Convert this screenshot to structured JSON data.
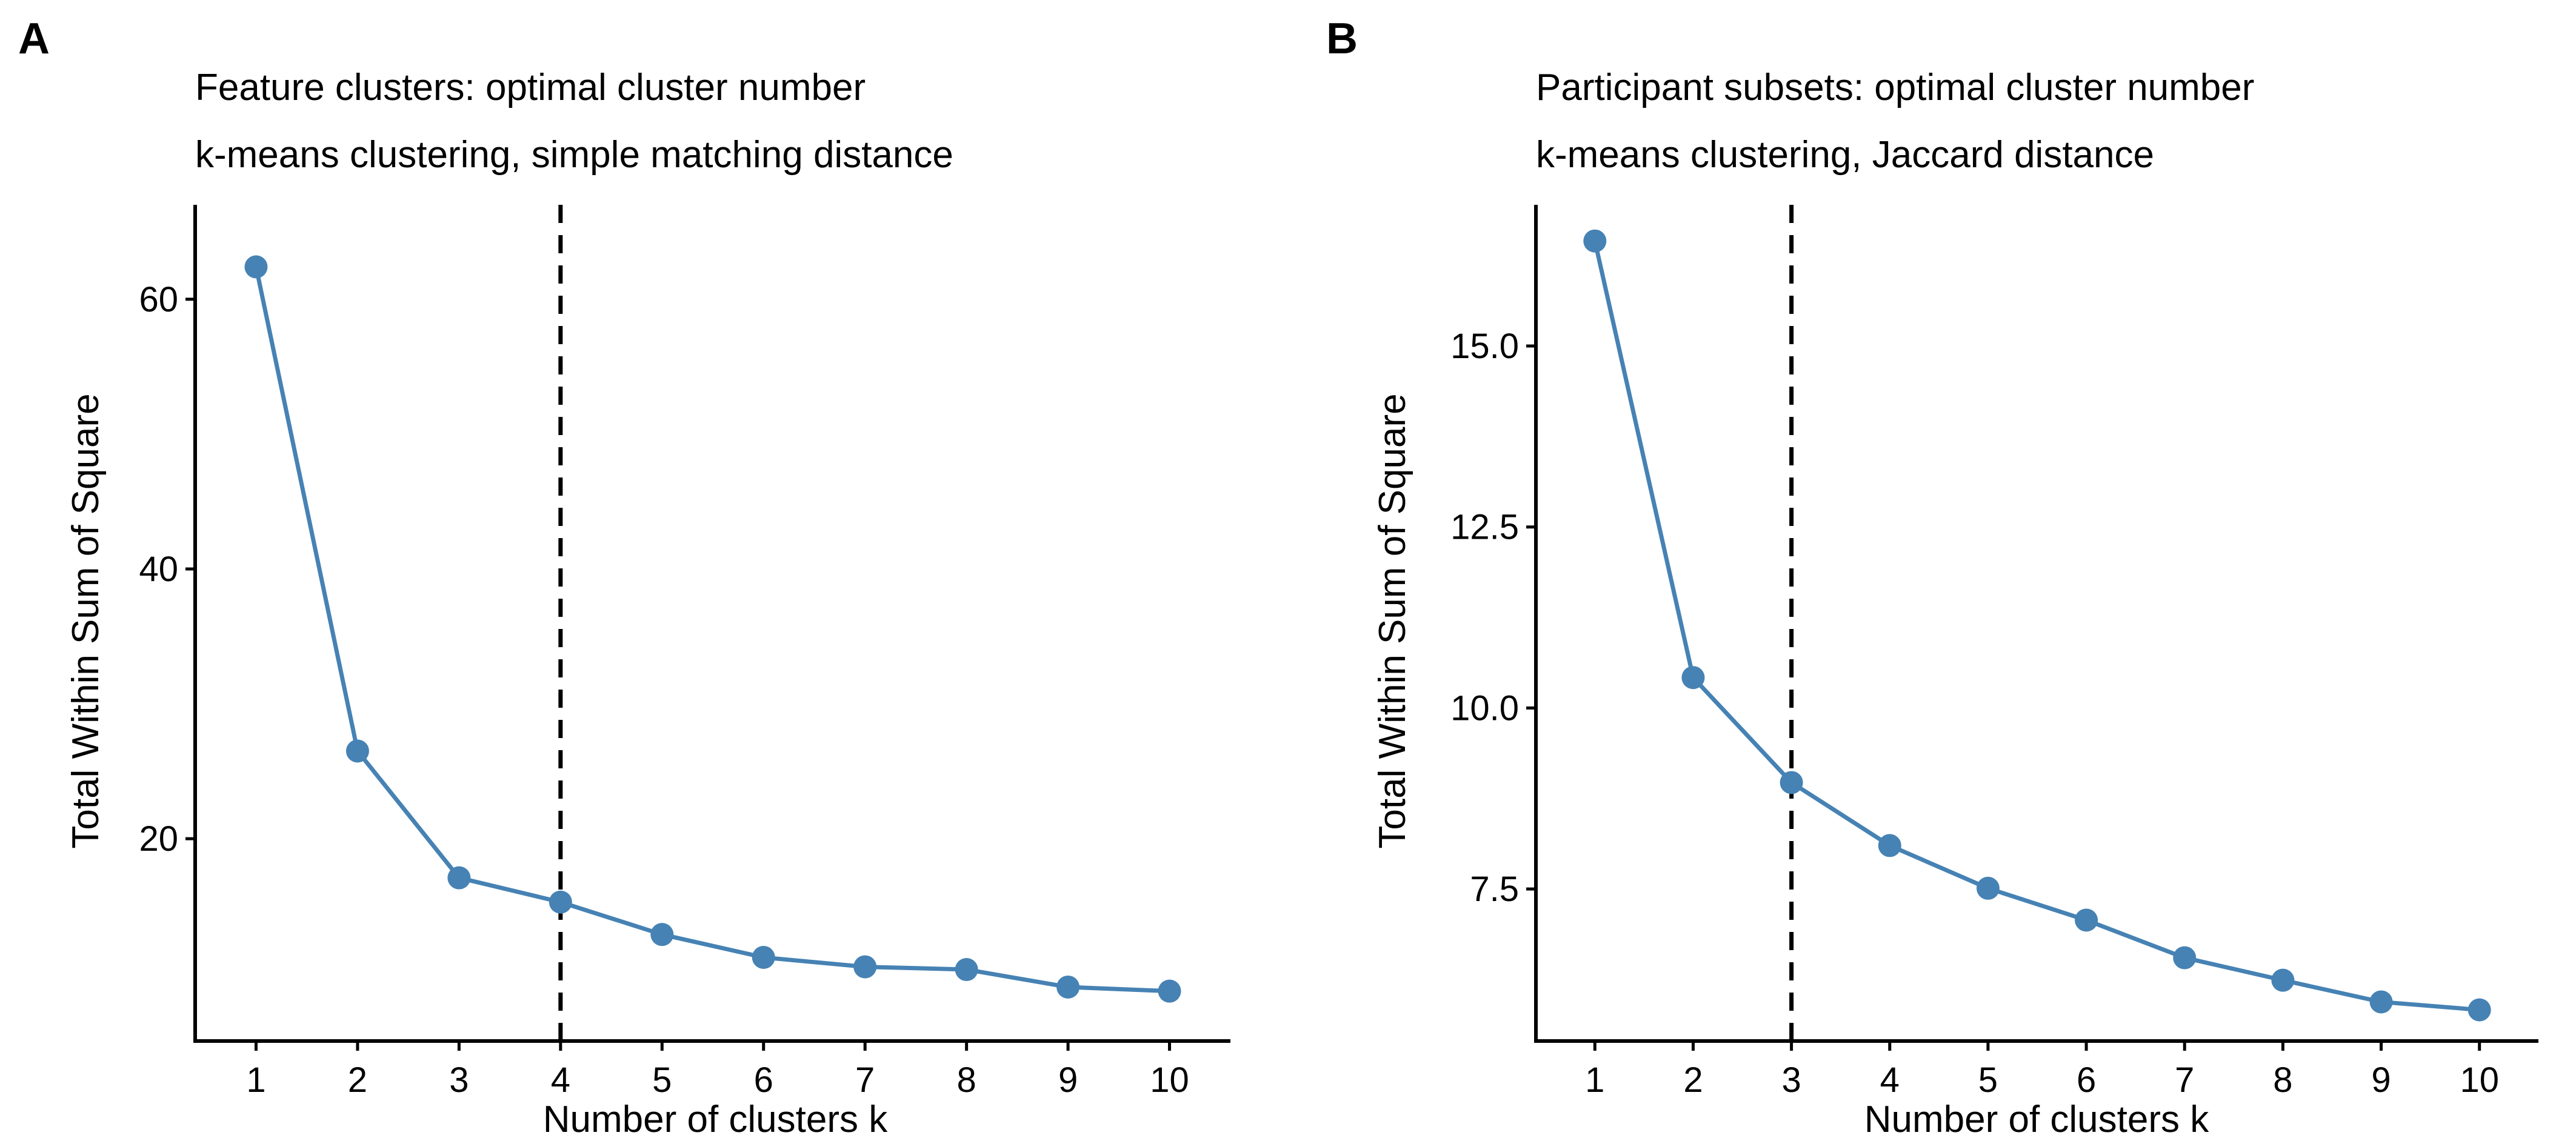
{
  "chart_data": [
    {
      "panel_label": "A",
      "type": "line",
      "title": "Feature clusters: optimal cluster number",
      "subtitle": "k-means clustering, simple matching distance",
      "xlabel": "Number of clusters k",
      "ylabel": "Total Within Sum of Square",
      "x": [
        1,
        2,
        3,
        4,
        5,
        6,
        7,
        8,
        9,
        10
      ],
      "y": [
        62.4,
        26.5,
        17.1,
        15.3,
        12.9,
        11.2,
        10.5,
        10.3,
        9.0,
        8.7
      ],
      "xticks": [
        1,
        2,
        3,
        4,
        5,
        6,
        7,
        8,
        9,
        10
      ],
      "yticks": [
        20,
        40,
        60
      ],
      "ytick_labels": [
        "20",
        "40",
        "60"
      ],
      "xlim": [
        0.4,
        10.6
      ],
      "ylim": [
        5.0,
        67.0
      ],
      "optimal_k": 4,
      "color": "#4682b4",
      "grid": false,
      "legend": "none"
    },
    {
      "panel_label": "B",
      "type": "line",
      "title": "Participant subsets: optimal cluster number",
      "subtitle": "k-means clustering, Jaccard distance",
      "xlabel": "Number of clusters k",
      "ylabel": "Total Within Sum of Square",
      "x": [
        1,
        2,
        3,
        4,
        5,
        6,
        7,
        8,
        9,
        10
      ],
      "y": [
        16.45,
        10.42,
        8.97,
        8.1,
        7.51,
        7.07,
        6.55,
        6.24,
        5.94,
        5.83
      ],
      "xticks": [
        1,
        2,
        3,
        4,
        5,
        6,
        7,
        8,
        9,
        10
      ],
      "yticks": [
        7.5,
        10.0,
        12.5,
        15.0
      ],
      "ytick_labels": [
        "7.5",
        "10.0",
        "12.5",
        "15.0"
      ],
      "xlim": [
        0.4,
        10.6
      ],
      "ylim": [
        5.4,
        16.95
      ],
      "optimal_k": 3,
      "color": "#4682b4",
      "grid": false,
      "legend": "none"
    }
  ]
}
